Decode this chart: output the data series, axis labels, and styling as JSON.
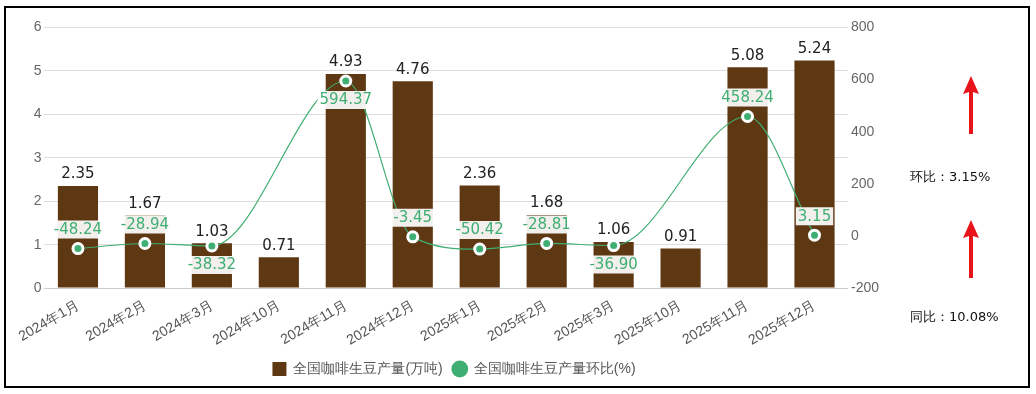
{
  "chart_data": {
    "type": "bar",
    "categories": [
      "2024年1月",
      "2024年2月",
      "2024年3月",
      "2024年10月",
      "2024年11月",
      "2024年12月",
      "2025年1月",
      "2025年2月",
      "2025年3月",
      "2025年10月",
      "2025年11月",
      "2025年12月"
    ],
    "series": [
      {
        "name": "全国咖啡生豆产量(万吨)",
        "type": "bar",
        "color": "#5e3813",
        "values": [
          2.35,
          1.67,
          1.03,
          0.71,
          4.93,
          4.76,
          2.36,
          1.68,
          1.06,
          0.91,
          5.08,
          5.24
        ],
        "value_labels": [
          "2.35",
          "1.67",
          "1.03",
          "0.71",
          "4.93",
          "4.76",
          "2.36",
          "1.68",
          "1.06",
          "0.91",
          "5.08",
          "5.24"
        ]
      },
      {
        "name": "全国咖啡生豆产量环比(%)",
        "type": "line",
        "axis": "y2",
        "color": "#3fae72",
        "marker": "circle",
        "values": [
          -48.24,
          -28.94,
          -38.32,
          null,
          594.37,
          -3.45,
          -50.42,
          -28.81,
          -36.9,
          null,
          458.24,
          3.15
        ],
        "value_labels": [
          "-48.24",
          "-28.94",
          "-38.32",
          null,
          "594.37",
          "-3.45",
          "-50.42",
          "-28.81",
          "-36.90",
          null,
          "458.24",
          "3.15"
        ]
      }
    ],
    "ylim": [
      0,
      6
    ],
    "yticks": [
      0,
      1,
      2,
      3,
      4,
      5,
      6
    ],
    "y2lim": [
      -200,
      800
    ],
    "y2ticks": [
      -200,
      0,
      200,
      400,
      600,
      800
    ],
    "grid": "y",
    "legend": "bottom",
    "annotations": [
      "环比：3.15%",
      "同比：10.08%"
    ]
  }
}
